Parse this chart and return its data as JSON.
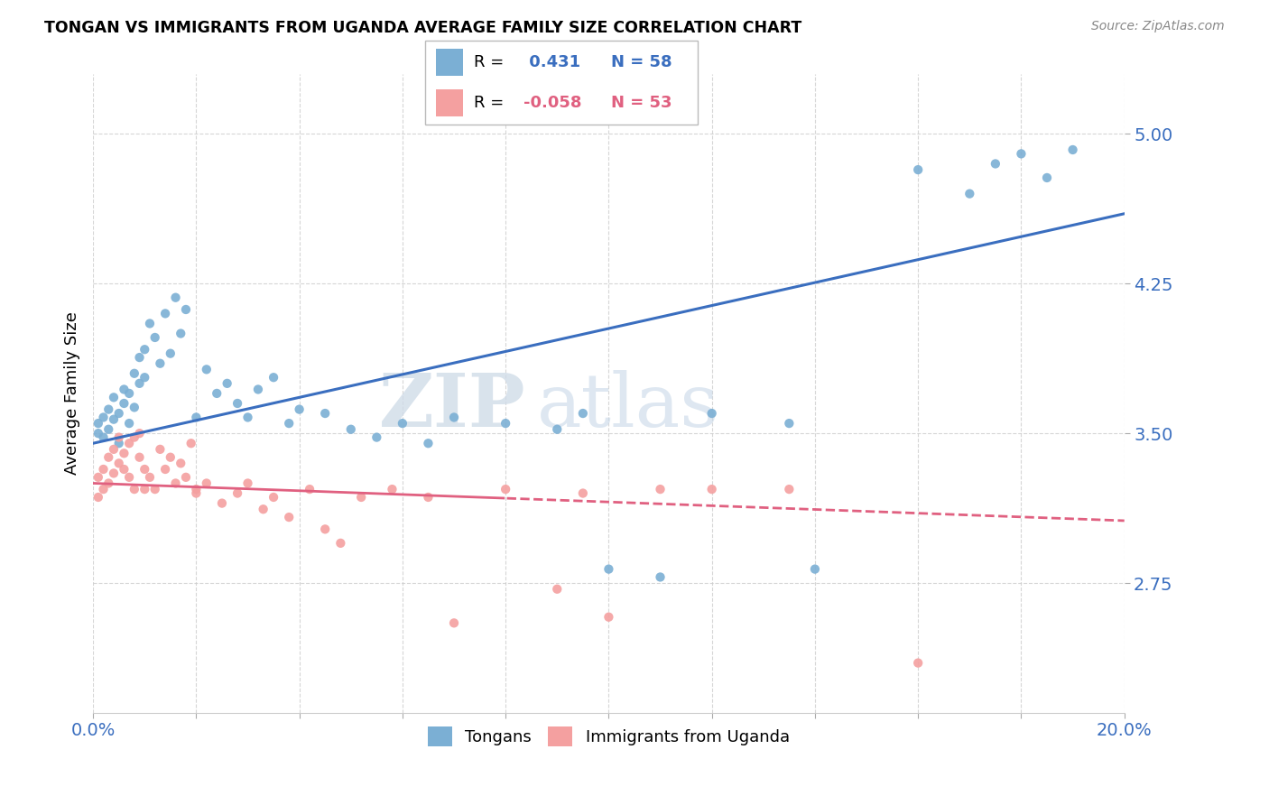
{
  "title": "TONGAN VS IMMIGRANTS FROM UGANDA AVERAGE FAMILY SIZE CORRELATION CHART",
  "source": "Source: ZipAtlas.com",
  "ylabel": "Average Family Size",
  "yticks": [
    2.75,
    3.5,
    4.25,
    5.0
  ],
  "xlim": [
    0.0,
    0.2
  ],
  "ylim": [
    2.1,
    5.3
  ],
  "blue_R": 0.431,
  "blue_N": 58,
  "pink_R": -0.058,
  "pink_N": 53,
  "blue_color": "#7bafd4",
  "pink_color": "#f4a0a0",
  "blue_line_color": "#3a6ebf",
  "pink_line_color": "#e06080",
  "watermark_zip": "ZIP",
  "watermark_atlas": "atlas",
  "blue_points_x": [
    0.001,
    0.001,
    0.002,
    0.002,
    0.003,
    0.003,
    0.004,
    0.004,
    0.005,
    0.005,
    0.006,
    0.006,
    0.007,
    0.007,
    0.008,
    0.008,
    0.009,
    0.009,
    0.01,
    0.01,
    0.011,
    0.012,
    0.013,
    0.014,
    0.015,
    0.016,
    0.017,
    0.018,
    0.02,
    0.022,
    0.024,
    0.026,
    0.028,
    0.03,
    0.032,
    0.035,
    0.038,
    0.04,
    0.045,
    0.05,
    0.055,
    0.06,
    0.065,
    0.07,
    0.08,
    0.09,
    0.095,
    0.1,
    0.11,
    0.12,
    0.135,
    0.14,
    0.16,
    0.17,
    0.175,
    0.18,
    0.185,
    0.19
  ],
  "blue_points_y": [
    3.5,
    3.55,
    3.48,
    3.58,
    3.52,
    3.62,
    3.57,
    3.68,
    3.6,
    3.45,
    3.65,
    3.72,
    3.7,
    3.55,
    3.8,
    3.63,
    3.75,
    3.88,
    3.78,
    3.92,
    4.05,
    3.98,
    3.85,
    4.1,
    3.9,
    4.18,
    4.0,
    4.12,
    3.58,
    3.82,
    3.7,
    3.75,
    3.65,
    3.58,
    3.72,
    3.78,
    3.55,
    3.62,
    3.6,
    3.52,
    3.48,
    3.55,
    3.45,
    3.58,
    3.55,
    3.52,
    3.6,
    2.82,
    2.78,
    3.6,
    3.55,
    2.82,
    4.82,
    4.7,
    4.85,
    4.9,
    4.78,
    4.92
  ],
  "pink_points_x": [
    0.001,
    0.001,
    0.002,
    0.002,
    0.003,
    0.003,
    0.004,
    0.004,
    0.005,
    0.005,
    0.006,
    0.006,
    0.007,
    0.007,
    0.008,
    0.008,
    0.009,
    0.009,
    0.01,
    0.01,
    0.011,
    0.012,
    0.013,
    0.014,
    0.015,
    0.016,
    0.017,
    0.018,
    0.019,
    0.02,
    0.022,
    0.025,
    0.028,
    0.03,
    0.033,
    0.035,
    0.038,
    0.042,
    0.045,
    0.048,
    0.052,
    0.058,
    0.065,
    0.07,
    0.08,
    0.09,
    0.095,
    0.1,
    0.11,
    0.12,
    0.135,
    0.16,
    0.02
  ],
  "pink_points_y": [
    3.28,
    3.18,
    3.32,
    3.22,
    3.38,
    3.25,
    3.42,
    3.3,
    3.35,
    3.48,
    3.4,
    3.32,
    3.45,
    3.28,
    3.48,
    3.22,
    3.38,
    3.5,
    3.32,
    3.22,
    3.28,
    3.22,
    3.42,
    3.32,
    3.38,
    3.25,
    3.35,
    3.28,
    3.45,
    3.2,
    3.25,
    3.15,
    3.2,
    3.25,
    3.12,
    3.18,
    3.08,
    3.22,
    3.02,
    2.95,
    3.18,
    3.22,
    3.18,
    2.55,
    3.22,
    2.72,
    3.2,
    2.58,
    3.22,
    3.22,
    3.22,
    2.35,
    3.22
  ]
}
